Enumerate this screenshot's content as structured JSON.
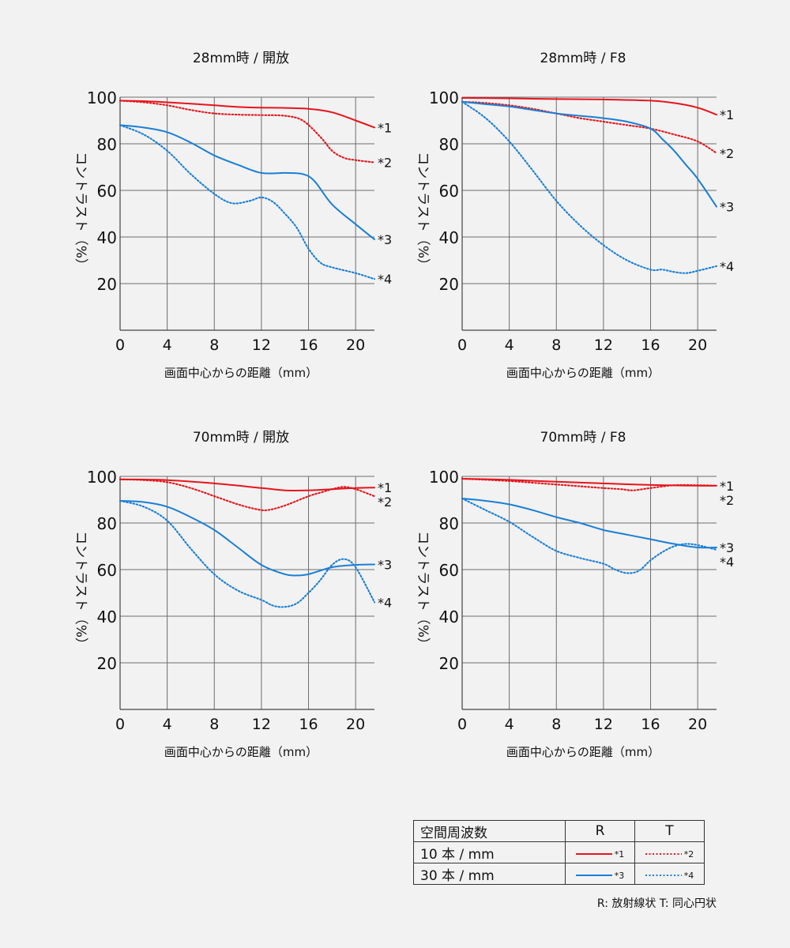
{
  "chart_data": [
    {
      "type": "line",
      "title": "28mm時 / 開放",
      "xlabel": "画面中心からの距離（mm）",
      "ylabel": "コントラスト（%）",
      "xlim": [
        0,
        21.6
      ],
      "ylim": [
        0,
        100
      ],
      "xticks": [
        0,
        4,
        8,
        12,
        16,
        20
      ],
      "yticks": [
        20,
        40,
        60,
        80,
        100
      ],
      "grid": true,
      "series": [
        {
          "name": "*1",
          "style": "solid",
          "color": "#e8141b",
          "x": [
            0,
            2,
            4,
            6,
            8,
            10,
            12,
            14,
            16,
            18,
            20,
            21.6
          ],
          "y": [
            98.5,
            98.3,
            97.8,
            97.2,
            96.5,
            95.8,
            95.5,
            95.4,
            95,
            93.5,
            90,
            87
          ]
        },
        {
          "name": "*2",
          "style": "dotted",
          "color": "#e8141b",
          "x": [
            0,
            2,
            4,
            6,
            8,
            10,
            12,
            14,
            15.5,
            17,
            18,
            19,
            20,
            21.6
          ],
          "y": [
            98.5,
            97.8,
            96.5,
            94.5,
            93,
            92.5,
            92.3,
            92,
            90,
            83,
            77,
            74,
            73,
            72
          ]
        },
        {
          "name": "*3",
          "style": "solid",
          "color": "#1a7fd6",
          "x": [
            0,
            2,
            4,
            6,
            8,
            10,
            12,
            14,
            15.5,
            16.5,
            18,
            20,
            21.6
          ],
          "y": [
            88,
            87,
            85,
            80.5,
            75,
            71,
            67.5,
            67.5,
            67,
            64,
            54,
            45.5,
            39
          ]
        },
        {
          "name": "*4",
          "style": "dotted",
          "color": "#1a7fd6",
          "x": [
            0,
            2,
            4,
            6,
            8,
            9.5,
            11,
            12,
            13,
            14,
            15,
            16,
            17,
            18,
            20,
            21.6
          ],
          "y": [
            88,
            84,
            77,
            67,
            58.5,
            54.5,
            55.5,
            57,
            55,
            50,
            44,
            35,
            29,
            27,
            24.5,
            22
          ]
        }
      ]
    },
    {
      "type": "line",
      "title": "28mm時 / F8",
      "xlabel": "画面中心からの距離（mm）",
      "ylabel": "コントラスト（%）",
      "xlim": [
        0,
        21.6
      ],
      "ylim": [
        0,
        100
      ],
      "xticks": [
        0,
        4,
        8,
        12,
        16,
        20
      ],
      "yticks": [
        20,
        40,
        60,
        80,
        100
      ],
      "grid": true,
      "series": [
        {
          "name": "*1",
          "style": "solid",
          "color": "#e8141b",
          "x": [
            0,
            4,
            8,
            12,
            16,
            18,
            20,
            21.6
          ],
          "y": [
            99.7,
            99.5,
            99.2,
            99,
            98.5,
            97.5,
            95.5,
            92.5
          ]
        },
        {
          "name": "*2",
          "style": "dotted",
          "color": "#e8141b",
          "x": [
            0,
            2,
            4,
            6,
            8,
            10,
            12,
            14,
            16,
            18,
            20,
            21.6
          ],
          "y": [
            98,
            97.5,
            96.5,
            95,
            93,
            91,
            89.5,
            88,
            86.5,
            84,
            81,
            76
          ]
        },
        {
          "name": "*3",
          "style": "solid",
          "color": "#1a7fd6",
          "x": [
            0,
            2,
            4,
            6,
            8,
            10,
            12,
            14,
            16,
            17,
            18,
            19,
            20,
            21.6
          ],
          "y": [
            98,
            97,
            96,
            94.5,
            93,
            92,
            91,
            89.5,
            86.5,
            82,
            77,
            71,
            65,
            53
          ]
        },
        {
          "name": "*4",
          "style": "dotted",
          "color": "#1a7fd6",
          "x": [
            0,
            2,
            4,
            6,
            8,
            10,
            12,
            14,
            16,
            17,
            18,
            19,
            20,
            21.6
          ],
          "y": [
            98,
            91,
            81,
            68.5,
            55.5,
            45,
            36.5,
            30,
            26,
            26,
            25,
            24.5,
            25.5,
            27.5
          ]
        }
      ]
    },
    {
      "type": "line",
      "title": "70mm時 / 開放",
      "xlabel": "画面中心からの距離（mm）",
      "ylabel": "コントラスト（%）",
      "xlim": [
        0,
        21.6
      ],
      "ylim": [
        0,
        100
      ],
      "xticks": [
        0,
        4,
        8,
        12,
        16,
        20
      ],
      "yticks": [
        20,
        40,
        60,
        80,
        100
      ],
      "grid": true,
      "series": [
        {
          "name": "*1",
          "style": "solid",
          "color": "#e8141b",
          "x": [
            0,
            4,
            8,
            12,
            14,
            16,
            18,
            20,
            21.6
          ],
          "y": [
            98.7,
            98.4,
            97,
            95,
            94,
            94,
            94.5,
            95,
            95.2
          ]
        },
        {
          "name": "*2",
          "style": "dotted",
          "color": "#e8141b",
          "x": [
            0,
            2,
            4,
            6,
            8,
            10,
            11.5,
            12.5,
            14,
            16,
            17,
            18,
            19,
            20,
            21.6
          ],
          "y": [
            98.7,
            98.4,
            97.5,
            95,
            91.5,
            88,
            86,
            85.5,
            87.5,
            91.5,
            93,
            94.5,
            95.5,
            94.5,
            91.5
          ]
        },
        {
          "name": "*3",
          "style": "solid",
          "color": "#1a7fd6",
          "x": [
            0,
            2,
            4,
            6,
            8,
            10,
            12,
            14,
            15,
            16,
            18,
            20,
            21.6
          ],
          "y": [
            89.5,
            89,
            87,
            82.5,
            77,
            69.5,
            62,
            58,
            57.5,
            58,
            61,
            62,
            62.2
          ]
        },
        {
          "name": "*4",
          "style": "dotted",
          "color": "#1a7fd6",
          "x": [
            0,
            2,
            4,
            6,
            8,
            10,
            12,
            13,
            14,
            15,
            16,
            17,
            18,
            19,
            20,
            21.6
          ],
          "y": [
            89.5,
            87,
            81,
            69,
            58,
            51,
            47,
            44.5,
            44,
            45.5,
            50,
            55.5,
            62,
            64.5,
            61,
            46
          ]
        }
      ]
    },
    {
      "type": "line",
      "title": "70mm時 / F8",
      "xlabel": "画面中心からの距離（mm）",
      "ylabel": "コントラスト（%）",
      "xlim": [
        0,
        21.6
      ],
      "ylim": [
        0,
        100
      ],
      "xticks": [
        0,
        4,
        8,
        12,
        16,
        20
      ],
      "yticks": [
        20,
        40,
        60,
        80,
        100
      ],
      "grid": true,
      "series": [
        {
          "name": "*1",
          "style": "solid",
          "color": "#e8141b",
          "x": [
            0,
            4,
            8,
            12,
            16,
            20,
            21.6
          ],
          "y": [
            99,
            98.5,
            97.7,
            97,
            96.3,
            96,
            96
          ]
        },
        {
          "name": "*2",
          "style": "dotted",
          "color": "#e8141b",
          "x": [
            0,
            4,
            8,
            12,
            13.5,
            14.5,
            16,
            18,
            20,
            21.6
          ],
          "y": [
            99,
            98,
            96.5,
            95,
            94.5,
            94,
            95,
            96.2,
            96.2,
            96
          ]
        },
        {
          "name": "*3",
          "style": "solid",
          "color": "#1a7fd6",
          "x": [
            0,
            2,
            4,
            6,
            8,
            10,
            12,
            14,
            16,
            18,
            20,
            21.6
          ],
          "y": [
            90.5,
            89.5,
            88,
            85.5,
            82.5,
            80,
            77,
            75,
            73,
            71,
            69.5,
            69.5
          ]
        },
        {
          "name": "*4",
          "style": "dotted",
          "color": "#1a7fd6",
          "x": [
            0,
            2,
            4,
            6,
            8,
            10,
            12,
            13,
            14,
            15,
            16,
            17,
            18,
            19,
            20,
            21.6
          ],
          "y": [
            90.5,
            85.5,
            80.5,
            74,
            68,
            65,
            62.5,
            60,
            58.5,
            59.5,
            64,
            67.5,
            70,
            71,
            70.5,
            68.5
          ]
        }
      ]
    }
  ],
  "legend": {
    "title": "空間周波数",
    "col_r": "R",
    "col_t": "T",
    "rows": [
      {
        "label": "10 本 / mm",
        "r_mark": "*1",
        "t_mark": "*2",
        "color": "#e8141b"
      },
      {
        "label": "30 本 / mm",
        "r_mark": "*3",
        "t_mark": "*4",
        "color": "#1a7fd6"
      }
    ],
    "note": "R: 放射線状  T: 同心円状"
  }
}
